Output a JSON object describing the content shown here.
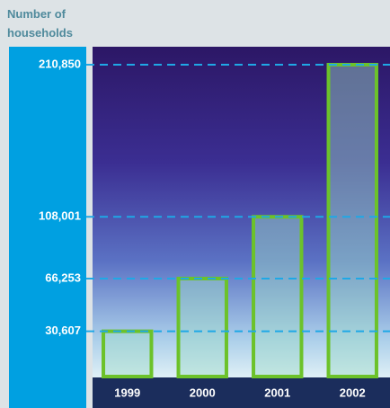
{
  "chart_data": {
    "type": "bar",
    "y_axis_label": [
      "Number of",
      "households"
    ],
    "categories": [
      "1999",
      "2000",
      "2001",
      "2002"
    ],
    "values": [
      30607,
      66253,
      108001,
      210850
    ],
    "color": "#6cc22a",
    "ylim": [
      0,
      223000
    ],
    "yticks": [
      {
        "value": 30607,
        "label": "30,607"
      },
      {
        "value": 66253,
        "label": "66,253"
      },
      {
        "value": 108001,
        "label": "108,001"
      },
      {
        "value": 210850,
        "label": "210,850"
      }
    ],
    "grid": true
  }
}
